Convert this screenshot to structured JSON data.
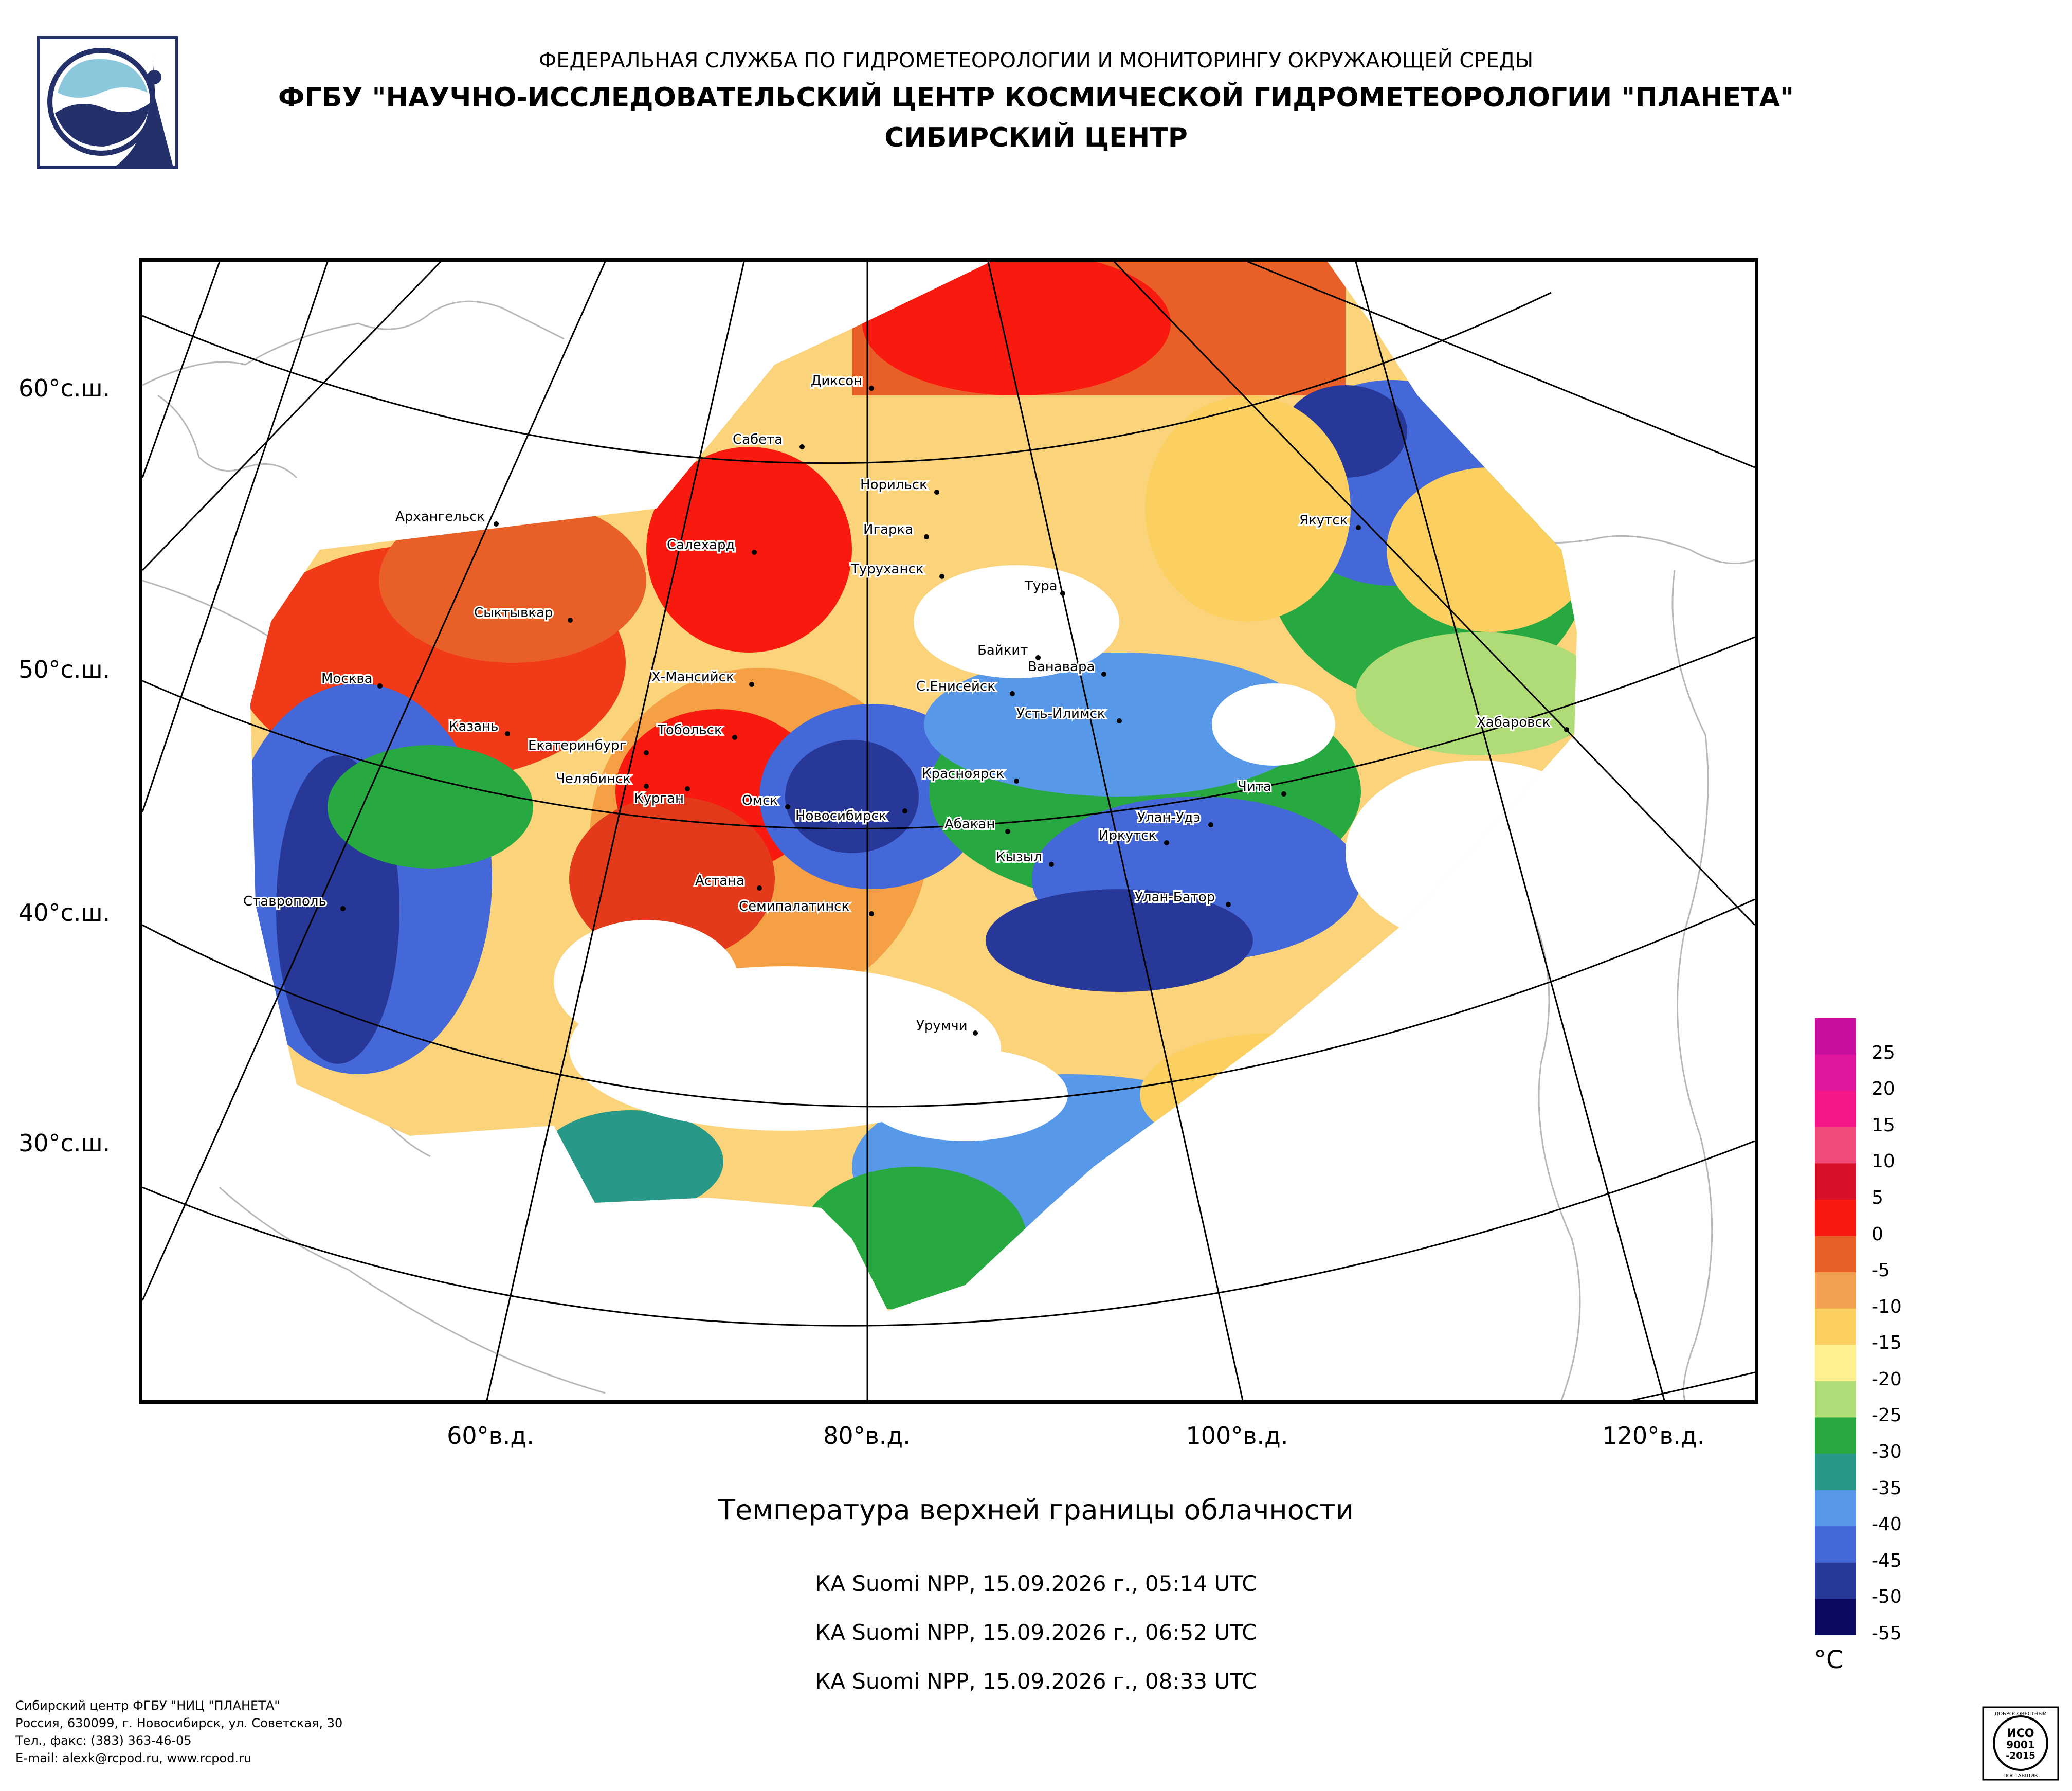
{
  "header": {
    "agency": "ФЕДЕРАЛЬНАЯ СЛУЖБА ПО ГИДРОМЕТЕОРОЛОГИИ И МОНИТОРИНГУ ОКРУЖАЮЩЕЙ СРЕДЫ",
    "center": "ФГБУ \"НАУЧНО-ИССЛЕДОВАТЕЛЬСКИЙ ЦЕНТР КОСМИЧЕСКОЙ ГИДРОМЕТЕОРОЛОГИИ \"ПЛАНЕТА\"",
    "branch": "СИБИРСКИЙ ЦЕНТР"
  },
  "map": {
    "lat_labels": [
      "60°с.ш.",
      "50°с.ш.",
      "40°с.ш.",
      "30°с.ш."
    ],
    "lon_labels": [
      "60°в.д.",
      "80°в.д.",
      "100°в.д.",
      "120°в.д."
    ],
    "cities": [
      "Диксон",
      "Сабета",
      "Норильск",
      "Игарка",
      "Архангельск",
      "Салехард",
      "Туруханск",
      "Тура",
      "Якутск",
      "Сыктывкар",
      "Байкит",
      "Ванавара",
      "Москва",
      "Х-Мансийск",
      "С.Енисейск",
      "Усть-Илимск",
      "Хабаровск",
      "Казань",
      "Тобольск",
      "Екатеринбург",
      "Челябинск",
      "Курган",
      "Красноярск",
      "Чита",
      "Омск",
      "Новосибирск",
      "Абакан",
      "Улан-Удэ",
      "Иркутск",
      "Кызыл",
      "Астана",
      "Ставрополь",
      "Семипалатинск",
      "Улан-Батор",
      "Урумчи"
    ]
  },
  "title": "Температура верхней границы облачности",
  "passes": [
    "КА Suomi NPP, 15.09.2026 г., 05:14 UTC",
    "КА Suomi NPP, 15.09.2026 г., 06:52 UTC",
    "КА Suomi NPP, 15.09.2026 г., 08:33 UTC"
  ],
  "legend": {
    "unit": "°C",
    "labels": [
      "25",
      "20",
      "15",
      "10",
      "5",
      "0",
      "-5",
      "-10",
      "-15",
      "-20",
      "-25",
      "-30",
      "-35",
      "-40",
      "-45",
      "-50",
      "-55"
    ],
    "colors": [
      "#c80fa0",
      "#e0169e",
      "#f5168a",
      "#f04a78",
      "#d8102a",
      "#f81a0e",
      "#e86028",
      "#f0a050",
      "#fcd060",
      "#fcf090",
      "#b0dc78",
      "#28a840",
      "#289888",
      "#5898e8",
      "#4468d8",
      "#283898",
      "#0a0a60"
    ]
  },
  "footer": {
    "line1": "Сибирский центр ФГБУ \"НИЦ \"ПЛАНЕТА\"",
    "line2": "Россия, 630099, г. Новосибирск, ул. Советская, 30",
    "line3": "Тел., факс: (383) 363-46-05",
    "line4": "E-mail: alexk@rcpod.ru, www.rcpod.ru"
  },
  "iso_badge": {
    "top_text": "ДОБРОСОВЕСТНЫЙ",
    "line1": "ИСО",
    "line2": "9001",
    "line3": "-2015",
    "bottom_text": "ПОСТАВЩИК"
  }
}
